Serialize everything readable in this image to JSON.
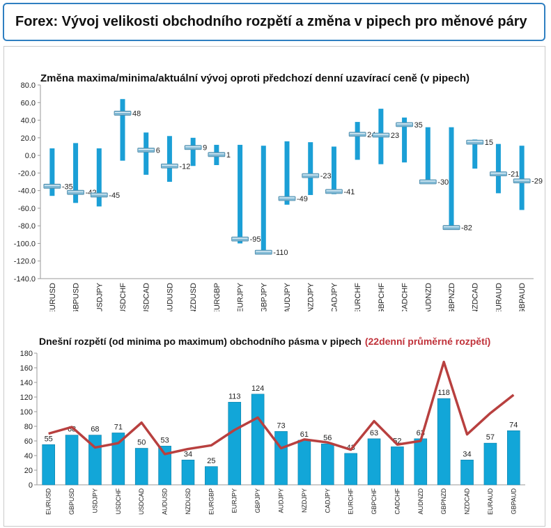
{
  "header": {
    "title": "Forex: Vývoj velikosti obchodního rozpětí a změna v pipech pro měnové páry"
  },
  "chart_data": [
    {
      "type": "range",
      "title": "Změna maxima/minima/aktuální vývoj oproti předchozí denní uzavírací ceně (v pipech)",
      "ylim": [
        -140,
        80
      ],
      "yticks": [
        "80.0",
        "60.0",
        "40.0",
        "20.0",
        "0.0",
        "-20.0",
        "-40.0",
        "-60.0",
        "-80.0",
        "-100.0",
        "-120.0",
        "-140.0"
      ],
      "categories": [
        "EURUSD",
        "GBPUSD",
        "USDJPY",
        "USDCHF",
        "USDCAD",
        "AUDUSD",
        "NZDUSD",
        "EURGBP",
        "EURJPY",
        "GBPJPY",
        "AUDJPY",
        "NZDJPY",
        "CADJPY",
        "EURCHF",
        "GBPCHF",
        "CADCHF",
        "AUDNZD",
        "GBPNZD",
        "NZDCAD",
        "EURAUD",
        "GBPAUD"
      ],
      "high": [
        8,
        14,
        8,
        64,
        26,
        22,
        20,
        12,
        12,
        11,
        16,
        15,
        10,
        38,
        53,
        43,
        32,
        32,
        18,
        13,
        11
      ],
      "low": [
        -46,
        -54,
        -58,
        -6,
        -22,
        -30,
        -12,
        -11,
        -100,
        -112,
        -56,
        -45,
        -44,
        -5,
        -10,
        -8,
        -32,
        -84,
        -15,
        -43,
        -62
      ],
      "current": [
        -35,
        -42,
        -45,
        48,
        6,
        -12,
        9,
        1,
        -95,
        -110,
        -49,
        -23,
        -41,
        24,
        23,
        35,
        -30,
        -82,
        15,
        -21,
        -29
      ],
      "labels": [
        "-35",
        "-42",
        "-45",
        "48",
        "6",
        "-12",
        "9",
        "1",
        "-95",
        "-110",
        "-49",
        "-23",
        "-41",
        "24",
        "23",
        "35",
        "-30",
        "-82",
        "15",
        "-21",
        "-29"
      ],
      "colors": {
        "bar": "#1b9fd6",
        "marker": "#7fb8d4"
      }
    },
    {
      "type": "bar+line",
      "title": "Dnešní rozpětí (od minima po maximum) obchodního pásma v pipech",
      "title_highlight": "(22denní průměrné rozpětí)",
      "ylim": [
        0,
        180
      ],
      "yticks": [
        "180",
        "160",
        "140",
        "120",
        "100",
        "80",
        "60",
        "40",
        "20",
        "0"
      ],
      "categories": [
        "EURUSD",
        "GBPUSD",
        "USDJPY",
        "USDCHF",
        "USDCAD",
        "AUDUSD",
        "NZDUSD",
        "EURGBP",
        "EURJPY",
        "GBPJPY",
        "AUDJPY",
        "NZDJPY",
        "CADJPY",
        "EURCHF",
        "GBPCHF",
        "CADCHF",
        "AUDNZD",
        "GBPNZD",
        "NZDCAD",
        "EURAUD",
        "GBPAUD"
      ],
      "values": [
        55,
        68,
        68,
        71,
        50,
        53,
        34,
        25,
        113,
        124,
        73,
        61,
        56,
        43,
        63,
        52,
        63,
        118,
        34,
        57,
        74
      ],
      "labels": [
        "55",
        "68",
        "68",
        "71",
        "50",
        "53",
        "34",
        "25",
        "113",
        "124",
        "73",
        "61",
        "56",
        "43",
        "63",
        "52",
        "63",
        "118",
        "34",
        "57",
        "74"
      ],
      "avg_line": [
        70,
        79,
        51,
        57,
        85,
        42,
        49,
        54,
        75,
        92,
        50,
        62,
        58,
        48,
        87,
        55,
        60,
        168,
        69,
        98,
        123
      ],
      "colors": {
        "bar": "#12a6d8",
        "line": "#b8403f",
        "highlight": "#c0323a"
      }
    }
  ]
}
